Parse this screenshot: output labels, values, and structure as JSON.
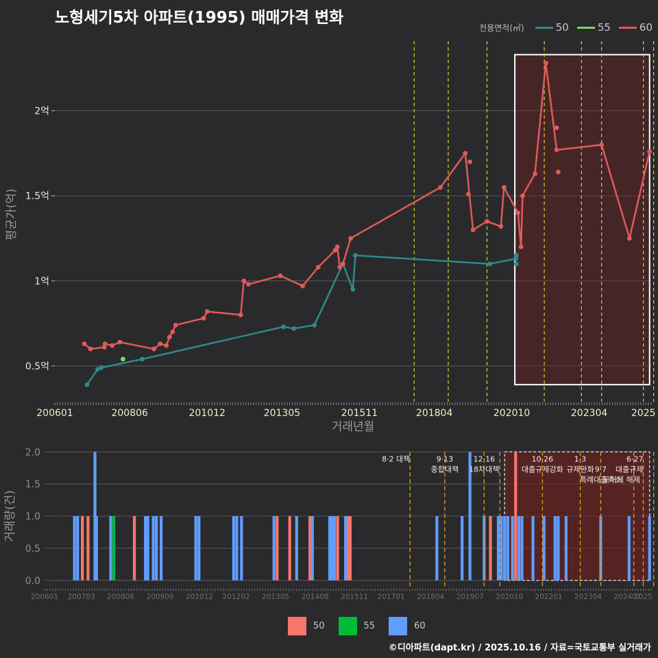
{
  "title": "노형세기5차 아파트(1995) 매매가격 변화",
  "legend": {
    "title": "전용면적(㎡)",
    "items": [
      {
        "label": "50",
        "color": "#2e8b8b",
        "bar_color": "#f8766d"
      },
      {
        "label": "55",
        "color": "#7ed957",
        "bar_color": "#00ba38"
      },
      {
        "label": "60",
        "color": "#e05a5a",
        "bar_color": "#619cff"
      }
    ]
  },
  "footer": "©디아파트(dapt.kr) / 2025.10.16 / 자료=국토교통부 실거래가",
  "chart_data": [
    {
      "type": "line",
      "title": "노형세기5차 아파트(1995) 매매가격 변화",
      "xlabel": "거래년월",
      "ylabel": "평균가(억)",
      "x_ticks": [
        "200601",
        "200806",
        "201012",
        "201305",
        "201511",
        "201804",
        "202010",
        "202304",
        "2025"
      ],
      "y_ticks": [
        {
          "v": 0.5,
          "label": "0.5억"
        },
        {
          "v": 1.0,
          "label": "1억"
        },
        {
          "v": 1.5,
          "label": "1.5억"
        },
        {
          "v": 2.0,
          "label": "2억"
        }
      ],
      "xlim": [
        2006.0,
        2025.25
      ],
      "ylim": [
        0.29,
        2.49
      ],
      "highlight": {
        "x0": 2020.85,
        "x1": 2025.2,
        "y0": 0.39,
        "y1": 2.33
      },
      "policy_lines": [
        2017.6,
        2018.7,
        2019.95,
        2021.8,
        2023.0,
        2023.65,
        2025.0,
        2025.33
      ],
      "series": [
        {
          "name": "50",
          "color": "#2e8b8b",
          "points": [
            [
              2007.04,
              0.39
            ],
            [
              2007.38,
              0.48
            ],
            [
              2007.5,
              0.49
            ],
            [
              2008.82,
              0.54
            ],
            [
              2013.38,
              0.73
            ],
            [
              2013.72,
              0.72
            ],
            [
              2014.38,
              0.74
            ],
            [
              2015.3,
              1.1
            ],
            [
              2015.62,
              0.95
            ],
            [
              2015.7,
              1.15
            ],
            [
              2020.04,
              1.1
            ],
            [
              2020.88,
              1.13
            ]
          ],
          "extra": [
            [
              2020.9,
              1.15
            ],
            [
              2020.9,
              1.1
            ]
          ]
        },
        {
          "name": "55",
          "color": "#7ed957",
          "points": [
            [
              2008.2,
              0.54
            ]
          ],
          "extra": []
        },
        {
          "name": "60",
          "color": "#e05a5a",
          "points": [
            [
              2006.95,
              0.63
            ],
            [
              2007.15,
              0.6
            ],
            [
              2007.6,
              0.61
            ],
            [
              2007.62,
              0.63
            ],
            [
              2007.85,
              0.62
            ],
            [
              2008.1,
              0.64
            ],
            [
              2009.2,
              0.6
            ],
            [
              2009.4,
              0.63
            ],
            [
              2009.6,
              0.62
            ],
            [
              2009.7,
              0.67
            ],
            [
              2009.8,
              0.7
            ],
            [
              2009.9,
              0.74
            ],
            [
              2010.8,
              0.78
            ],
            [
              2010.92,
              0.82
            ],
            [
              2012.0,
              0.8
            ],
            [
              2012.1,
              1.0
            ],
            [
              2012.25,
              0.98
            ],
            [
              2013.28,
              1.03
            ],
            [
              2014.0,
              0.97
            ],
            [
              2014.5,
              1.08
            ],
            [
              2015.05,
              1.18
            ],
            [
              2015.12,
              1.2
            ],
            [
              2015.2,
              1.08
            ],
            [
              2015.3,
              1.1
            ],
            [
              2015.55,
              1.25
            ],
            [
              2018.45,
              1.55
            ],
            [
              2019.25,
              1.75
            ],
            [
              2019.5,
              1.3
            ],
            [
              2019.95,
              1.35
            ],
            [
              2020.4,
              1.32
            ],
            [
              2020.5,
              1.55
            ],
            [
              2020.95,
              1.4
            ],
            [
              2021.05,
              1.2
            ],
            [
              2021.1,
              1.5
            ],
            [
              2021.5,
              1.63
            ],
            [
              2021.85,
              2.28
            ],
            [
              2022.2,
              1.77
            ],
            [
              2023.65,
              1.8
            ],
            [
              2024.55,
              1.25
            ],
            [
              2025.2,
              1.76
            ]
          ],
          "extra": [
            [
              2019.4,
              1.7
            ],
            [
              2019.35,
              1.51
            ],
            [
              2022.2,
              1.9
            ],
            [
              2022.25,
              1.64
            ]
          ]
        }
      ]
    },
    {
      "type": "bar",
      "ylabel": "거래량(건)",
      "x_ticks": [
        "200601",
        "200703",
        "200806",
        "200909",
        "201012",
        "201202",
        "201305",
        "201408",
        "201511",
        "201701",
        "201804",
        "201907",
        "202010",
        "202201",
        "202304",
        "202407",
        "2025"
      ],
      "y_ticks": [
        {
          "v": 0.0,
          "label": "0.0"
        },
        {
          "v": 0.5,
          "label": "0.5"
        },
        {
          "v": 1.0,
          "label": "1.0"
        },
        {
          "v": 1.5,
          "label": "1.5"
        },
        {
          "v": 2.0,
          "label": "2.0"
        }
      ],
      "xlim": [
        2006.0,
        2025.25
      ],
      "ylim": [
        -0.12,
        2.12
      ],
      "highlight": {
        "x0": 2020.6,
        "x1": 2025.2,
        "y0": 0.0,
        "y1": 2.0
      },
      "annotations": [
        {
          "x": 2017.6,
          "lines": [
            "8·2 대책"
          ],
          "align": "end"
        },
        {
          "x": 2018.7,
          "lines": [
            "9·13",
            "종합대책"
          ],
          "align": "middle"
        },
        {
          "x": 2019.95,
          "lines": [
            "12·16",
            "18차대책"
          ],
          "align": "middle"
        },
        {
          "x": 2021.8,
          "lines": [
            "10·26",
            "대출규제강화"
          ],
          "align": "middle"
        },
        {
          "x": 2023.0,
          "lines": [
            "1·3",
            "규제완화"
          ],
          "align": "middle"
        },
        {
          "x": 2023.65,
          "lines": [
            "",
            "9·7",
            "특례대출축소"
          ],
          "align": "middle"
        },
        {
          "x": 2025.0,
          "lines": [
            "6·27",
            "대출규제"
          ],
          "align": "middle"
        },
        {
          "x": 2024.9,
          "lines": [
            "",
            "",
            "토허제 해제"
          ],
          "align": "middle"
        }
      ],
      "policy_lines": [
        2017.6,
        2018.7,
        2019.95,
        2021.8,
        2023.0,
        2023.65,
        2025.0,
        2025.33,
        2020.45,
        2024.7
      ],
      "series": [
        {
          "name": "50",
          "color": "#f8766d",
          "bars": [
            [
              2007.2,
              1
            ],
            [
              2007.38,
              1
            ],
            [
              2008.85,
              1
            ],
            [
              2013.38,
              1
            ],
            [
              2013.78,
              1
            ],
            [
              2014.42,
              1
            ],
            [
              2015.3,
              1
            ],
            [
              2015.62,
              1
            ],
            [
              2015.7,
              1
            ],
            [
              2020.15,
              1
            ],
            [
              2020.95,
              2
            ]
          ]
        },
        {
          "name": "55",
          "color": "#00ba38",
          "bars": [
            [
              2008.2,
              1
            ]
          ]
        },
        {
          "name": "60",
          "color": "#619cff",
          "bars": [
            [
              2006.95,
              1
            ],
            [
              2007.05,
              1
            ],
            [
              2007.6,
              2
            ],
            [
              2007.65,
              1
            ],
            [
              2008.1,
              1
            ],
            [
              2009.2,
              1
            ],
            [
              2009.28,
              1
            ],
            [
              2009.45,
              1
            ],
            [
              2009.55,
              1
            ],
            [
              2009.7,
              1
            ],
            [
              2010.8,
              1
            ],
            [
              2010.9,
              1
            ],
            [
              2012.0,
              1
            ],
            [
              2012.1,
              1
            ],
            [
              2012.25,
              1
            ],
            [
              2013.28,
              1
            ],
            [
              2014.0,
              1
            ],
            [
              2014.5,
              1
            ],
            [
              2015.05,
              1
            ],
            [
              2015.12,
              1
            ],
            [
              2015.2,
              1
            ],
            [
              2015.55,
              1
            ],
            [
              2018.45,
              1
            ],
            [
              2019.25,
              1
            ],
            [
              2019.5,
              2
            ],
            [
              2019.95,
              1
            ],
            [
              2020.4,
              1
            ],
            [
              2020.5,
              1
            ],
            [
              2020.6,
              1
            ],
            [
              2020.7,
              1
            ],
            [
              2020.85,
              1
            ],
            [
              2021.05,
              1
            ],
            [
              2021.15,
              1
            ],
            [
              2021.5,
              1
            ],
            [
              2021.85,
              1
            ],
            [
              2022.2,
              1
            ],
            [
              2022.3,
              1
            ],
            [
              2022.55,
              1
            ],
            [
              2023.65,
              1
            ],
            [
              2024.55,
              1
            ],
            [
              2025.2,
              1
            ]
          ]
        }
      ]
    }
  ]
}
